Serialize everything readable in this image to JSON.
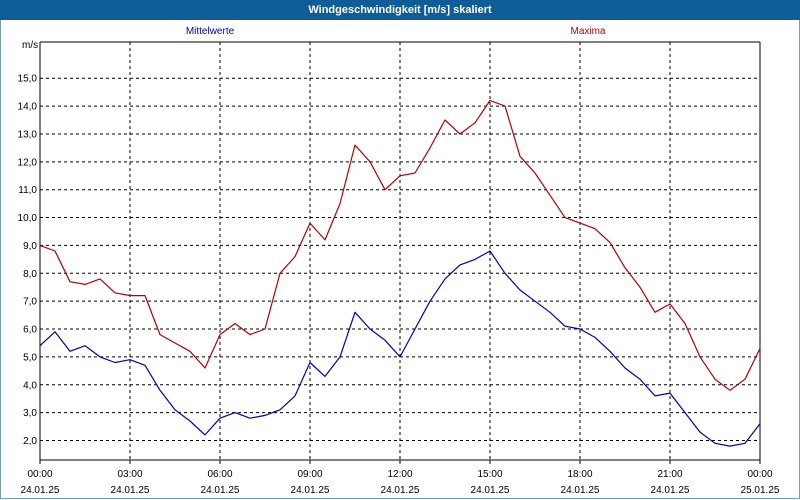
{
  "chart_data": {
    "type": "line",
    "title": "Windgeschwindigkeit [m/s] skaliert",
    "ylabel": "m/s",
    "xlabel": "",
    "ylim": [
      1.3,
      16.3
    ],
    "xlim": [
      0,
      24
    ],
    "grid": true,
    "y_ticks": [
      "2,0",
      "3,0",
      "4,0",
      "5,0",
      "6,0",
      "7,0",
      "8,0",
      "9,0",
      "10,0",
      "11,0",
      "12,0",
      "13,0",
      "14,0",
      "15,0"
    ],
    "x_ticks": [
      {
        "time": "00:00",
        "date": "24.01.25"
      },
      {
        "time": "03:00",
        "date": "24.01.25"
      },
      {
        "time": "06:00",
        "date": "24.01.25"
      },
      {
        "time": "09:00",
        "date": "24.01.25"
      },
      {
        "time": "12:00",
        "date": "24.01.25"
      },
      {
        "time": "15:00",
        "date": "24.01.25"
      },
      {
        "time": "18:00",
        "date": "24.01.25"
      },
      {
        "time": "21:00",
        "date": "24.01.25"
      },
      {
        "time": "00:00",
        "date": "25.01.25"
      }
    ],
    "series": [
      {
        "name": "Mittelwerte",
        "color": "#0000b4",
        "x": [
          0,
          0.5,
          1,
          1.5,
          2,
          2.5,
          3,
          3.5,
          4,
          4.5,
          5,
          5.5,
          6,
          6.5,
          7,
          7.5,
          8,
          8.5,
          9,
          9.5,
          10,
          10.5,
          11,
          11.5,
          12,
          12.5,
          13,
          13.5,
          14,
          14.5,
          15,
          15.5,
          16,
          16.5,
          17,
          17.5,
          18,
          18.5,
          19,
          19.5,
          20,
          20.5,
          21,
          21.5,
          22,
          22.5,
          23,
          23.5,
          24
        ],
        "values": [
          5.4,
          5.9,
          5.2,
          5.4,
          5.0,
          4.8,
          4.9,
          4.7,
          3.8,
          3.1,
          2.7,
          2.2,
          2.8,
          3.0,
          2.8,
          2.9,
          3.1,
          3.6,
          4.8,
          4.3,
          5.0,
          6.6,
          6.0,
          5.6,
          5.0,
          6.0,
          7.0,
          7.8,
          8.3,
          8.5,
          8.8,
          8.0,
          7.4,
          7.0,
          6.6,
          6.1,
          6.0,
          5.7,
          5.2,
          4.6,
          4.2,
          3.6,
          3.7,
          3.0,
          2.3,
          1.9,
          1.8,
          1.9,
          2.6
        ]
      },
      {
        "name": "Maxima",
        "color": "#b40000",
        "x": [
          0,
          0.5,
          1,
          1.5,
          2,
          2.5,
          3,
          3.5,
          4,
          4.5,
          5,
          5.5,
          6,
          6.5,
          7,
          7.5,
          8,
          8.5,
          9,
          9.5,
          10,
          10.5,
          11,
          11.5,
          12,
          12.5,
          13,
          13.5,
          14,
          14.5,
          15,
          15.5,
          16,
          16.5,
          17,
          17.5,
          18,
          18.5,
          19,
          19.5,
          20,
          20.5,
          21,
          21.5,
          22,
          22.5,
          23,
          23.5,
          24
        ],
        "values": [
          9.0,
          8.8,
          7.7,
          7.6,
          7.8,
          7.3,
          7.2,
          7.2,
          5.8,
          5.5,
          5.2,
          4.6,
          5.8,
          6.2,
          5.8,
          6.0,
          8.0,
          8.6,
          9.8,
          9.2,
          10.5,
          12.6,
          12.0,
          11.0,
          11.5,
          11.6,
          12.5,
          13.5,
          13.0,
          13.4,
          14.2,
          14.0,
          12.2,
          11.6,
          10.8,
          10.0,
          9.8,
          9.6,
          9.1,
          8.2,
          7.5,
          6.6,
          6.9,
          6.2,
          5.0,
          4.2,
          3.8,
          4.2,
          5.3
        ]
      }
    ]
  }
}
